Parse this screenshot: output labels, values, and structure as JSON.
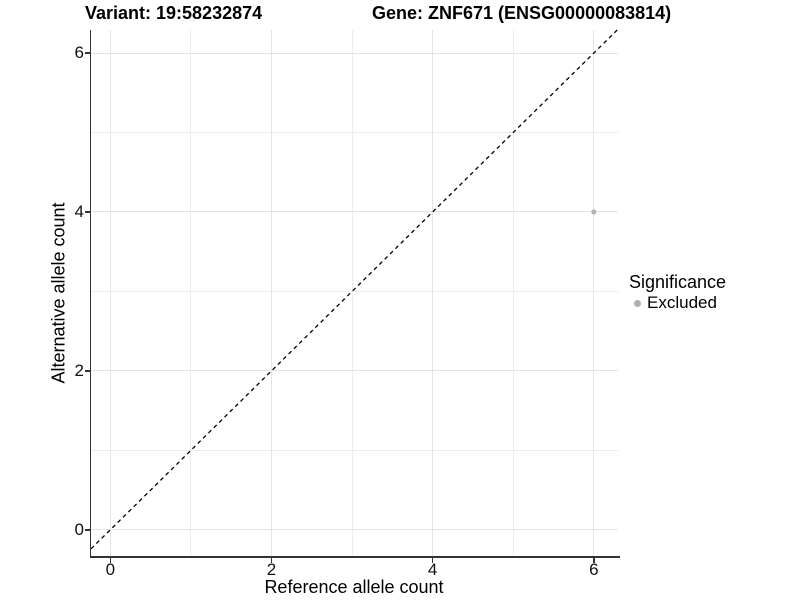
{
  "titles": {
    "variant": "Variant: 19:58232874",
    "gene": "Gene: ZNF671 (ENSG00000083814)"
  },
  "chart_data": {
    "type": "scatter",
    "xlabel": "Reference allele count",
    "ylabel": "Alternative allele count",
    "xlim": [
      -0.24,
      6.3
    ],
    "ylim": [
      -0.33,
      6.29
    ],
    "x_ticks": [
      0,
      2,
      4,
      6
    ],
    "y_ticks": [
      0,
      2,
      4,
      6
    ],
    "x_minor_ticks": [
      1,
      3,
      5
    ],
    "y_minor_ticks": [
      1,
      3,
      5
    ],
    "grid": "on",
    "series": [
      {
        "name": "Excluded",
        "color": "#b3b3b3",
        "points": [
          [
            6,
            4
          ]
        ]
      }
    ],
    "reference_line": {
      "slope": 1,
      "intercept": 0,
      "style": "dashed",
      "color": "#000000"
    },
    "legend": {
      "title": "Significance",
      "position": "right",
      "items": [
        {
          "label": "Excluded",
          "color": "#b0b0b0"
        }
      ]
    }
  },
  "colors": {
    "axis": "#333333",
    "grid_major": "#e4e4e4",
    "grid_minor": "#ececec",
    "point": "#b3b3b3",
    "background": "#ffffff"
  }
}
